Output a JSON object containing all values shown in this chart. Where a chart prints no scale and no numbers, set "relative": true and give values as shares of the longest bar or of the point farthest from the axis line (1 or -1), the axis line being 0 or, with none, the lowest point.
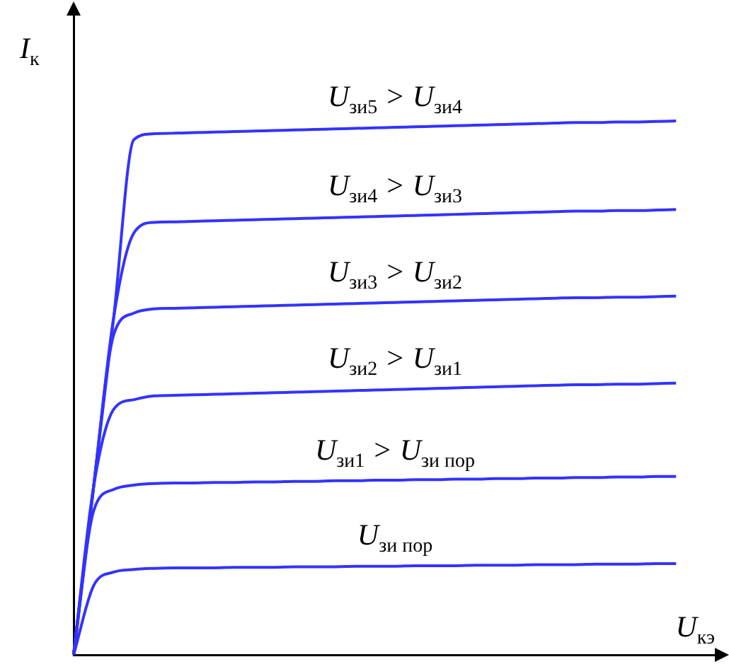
{
  "chart_data": {
    "type": "line",
    "relative": true,
    "marker": "none",
    "xlabel": "U$_{кэ}$",
    "ylabel": "I$_{к}$",
    "categories": [
      null,
      null,
      null,
      null,
      null,
      null,
      null,
      null,
      null,
      null,
      null,
      null,
      null,
      null,
      null,
      null,
      null,
      null,
      null,
      null,
      null,
      null,
      null,
      null,
      null,
      null,
      null,
      null,
      null,
      null,
      null,
      null,
      null
    ],
    "series": [
      {
        "name": "U$_{зи5}$ > U$_{зи4}$",
        "color": "#3333ff",
        "values": [
          0,
          0.316,
          0.633,
          0.965,
          0.976,
          0.977,
          0.978,
          0.979,
          0.98,
          0.981,
          0.982,
          0.983,
          0.984,
          0.985,
          0.986,
          0.987,
          0.988,
          0.989,
          0.99,
          0.991,
          0.992,
          0.993,
          0.994,
          0.995,
          0.996,
          0.997,
          0.997,
          0.998,
          0.998,
          0.999,
          1.0,
          null,
          null
        ]
      },
      {
        "name": "U$_{зи4}$ > U$_{зи3}$",
        "color": "#3333ff",
        "values": [
          0,
          0.316,
          0.633,
          0.79,
          0.81,
          0.811,
          0.812,
          0.813,
          0.814,
          0.815,
          0.816,
          0.817,
          0.818,
          0.819,
          0.82,
          0.821,
          0.822,
          0.823,
          0.824,
          0.825,
          0.826,
          0.827,
          0.828,
          0.829,
          0.83,
          0.831,
          0.831,
          0.832,
          0.832,
          0.833,
          0.834,
          null,
          null
        ]
      },
      {
        "name": "U$_{зи3}$ > U$_{зи2}$",
        "color": "#3333ff",
        "values": [
          0,
          0.316,
          0.6,
          0.64,
          0.648,
          0.649,
          0.65,
          0.651,
          0.652,
          0.653,
          0.654,
          0.655,
          0.656,
          0.657,
          0.658,
          0.659,
          0.66,
          0.661,
          0.662,
          0.663,
          0.664,
          0.665,
          0.666,
          0.667,
          0.668,
          0.669,
          0.669,
          0.67,
          0.67,
          0.671,
          0.672,
          null,
          null
        ]
      },
      {
        "name": "U$_{зи2}$ > U$_{зи1}$",
        "color": "#3333ff",
        "values": [
          0,
          0.316,
          0.46,
          0.478,
          0.485,
          0.486,
          0.487,
          0.488,
          0.489,
          0.49,
          0.491,
          0.492,
          0.493,
          0.494,
          0.495,
          0.496,
          0.497,
          0.498,
          0.499,
          0.5,
          0.501,
          0.502,
          0.503,
          0.504,
          0.505,
          0.506,
          0.506,
          0.507,
          0.507,
          0.508,
          0.509,
          null,
          null
        ]
      },
      {
        "name": "U$_{зи1}$ > U$_{зи пор}$",
        "color": "#3333ff",
        "values": [
          0,
          0.27,
          0.31,
          0.318,
          0.321,
          0.322,
          0.322,
          0.323,
          0.323,
          0.324,
          0.324,
          0.325,
          0.325,
          0.326,
          0.326,
          0.327,
          0.327,
          0.328,
          0.328,
          0.329,
          0.329,
          0.33,
          0.33,
          0.331,
          0.331,
          0.332,
          0.332,
          0.333,
          0.333,
          0.334,
          0.334,
          null,
          null
        ]
      },
      {
        "name": "U$_{зи пор}$",
        "color": "#3333ff",
        "values": [
          0,
          0.13,
          0.155,
          0.16,
          0.162,
          0.163,
          0.163,
          0.163,
          0.164,
          0.164,
          0.164,
          0.165,
          0.165,
          0.165,
          0.166,
          0.166,
          0.166,
          0.167,
          0.167,
          0.167,
          0.168,
          0.168,
          0.168,
          0.169,
          0.169,
          0.169,
          0.17,
          0.17,
          0.17,
          0.171,
          0.171,
          null,
          null
        ]
      }
    ]
  }
}
